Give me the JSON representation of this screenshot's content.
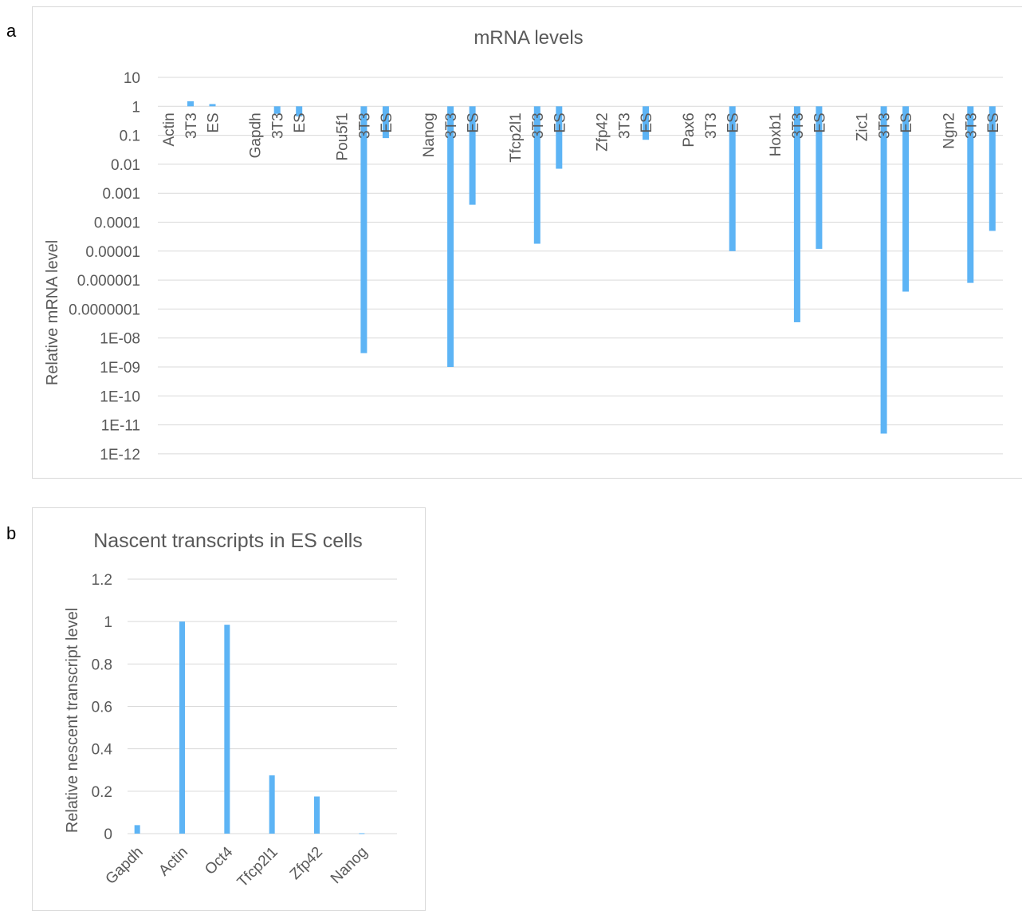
{
  "panels": {
    "a": "a",
    "b": "b"
  },
  "chart_data": [
    {
      "type": "bar",
      "title": "mRNA levels",
      "ylabel": "Relative mRNA level",
      "yscale": "log",
      "ylim": [
        1e-12,
        10
      ],
      "y_ticks": [
        "10",
        "1",
        "0.1",
        "0.01",
        "0.001",
        "0.0001",
        "0.00001",
        "0.000001",
        "0.0000001",
        "1E-08",
        "1E-09",
        "1E-10",
        "1E-11",
        "1E-12"
      ],
      "groups": [
        {
          "gene": "Actin",
          "bars": [
            {
              "label": "3T3",
              "value": 1.5
            },
            {
              "label": "ES",
              "value": 1.2
            }
          ]
        },
        {
          "gene": "Gapdh",
          "bars": [
            {
              "label": "3T3",
              "value": 0.55
            },
            {
              "label": "ES",
              "value": 0.45
            }
          ]
        },
        {
          "gene": "Pou5f1",
          "bars": [
            {
              "label": "3T3",
              "value": 3e-09
            },
            {
              "label": "ES",
              "value": 0.08
            }
          ]
        },
        {
          "gene": "Nanog",
          "bars": [
            {
              "label": "3T3",
              "value": 1e-09
            },
            {
              "label": "ES",
              "value": 0.0004
            }
          ]
        },
        {
          "gene": "Tfcp2l1",
          "bars": [
            {
              "label": "3T3",
              "value": 1.8e-05
            },
            {
              "label": "ES",
              "value": 0.007
            }
          ]
        },
        {
          "gene": "Zfp42",
          "bars": [
            {
              "label": "3T3",
              "value": null
            },
            {
              "label": "ES",
              "value": 0.07
            }
          ]
        },
        {
          "gene": "Pax6",
          "bars": [
            {
              "label": "3T3",
              "value": null
            },
            {
              "label": "ES",
              "value": 1e-05
            }
          ]
        },
        {
          "gene": "Hoxb1",
          "bars": [
            {
              "label": "3T3",
              "value": 3.5e-08
            },
            {
              "label": "ES",
              "value": 1.2e-05
            }
          ]
        },
        {
          "gene": "Zic1",
          "bars": [
            {
              "label": "3T3",
              "value": 5e-12
            },
            {
              "label": "ES",
              "value": 4e-07
            }
          ]
        },
        {
          "gene": "Ngn2",
          "bars": [
            {
              "label": "3T3",
              "value": 8e-07
            },
            {
              "label": "ES",
              "value": 5e-05
            }
          ]
        }
      ],
      "bar_color": "#5db4f5",
      "grid": true,
      "legend": "none"
    },
    {
      "type": "bar",
      "title": "Nascent transcripts in ES cells",
      "ylabel": "Relative nescent transcript level",
      "ylim": [
        0,
        1.2
      ],
      "y_ticks": [
        "0",
        "0.2",
        "0.4",
        "0.6",
        "0.8",
        "1",
        "1.2"
      ],
      "categories": [
        "Gapdh",
        "Actin",
        "Oct4",
        "Tfcp2l1",
        "Zfp42",
        "Nanog"
      ],
      "values": [
        0.04,
        1.0,
        0.985,
        0.275,
        0.175,
        0.002
      ],
      "bar_color": "#5db4f5",
      "grid": true,
      "legend": "none"
    }
  ]
}
